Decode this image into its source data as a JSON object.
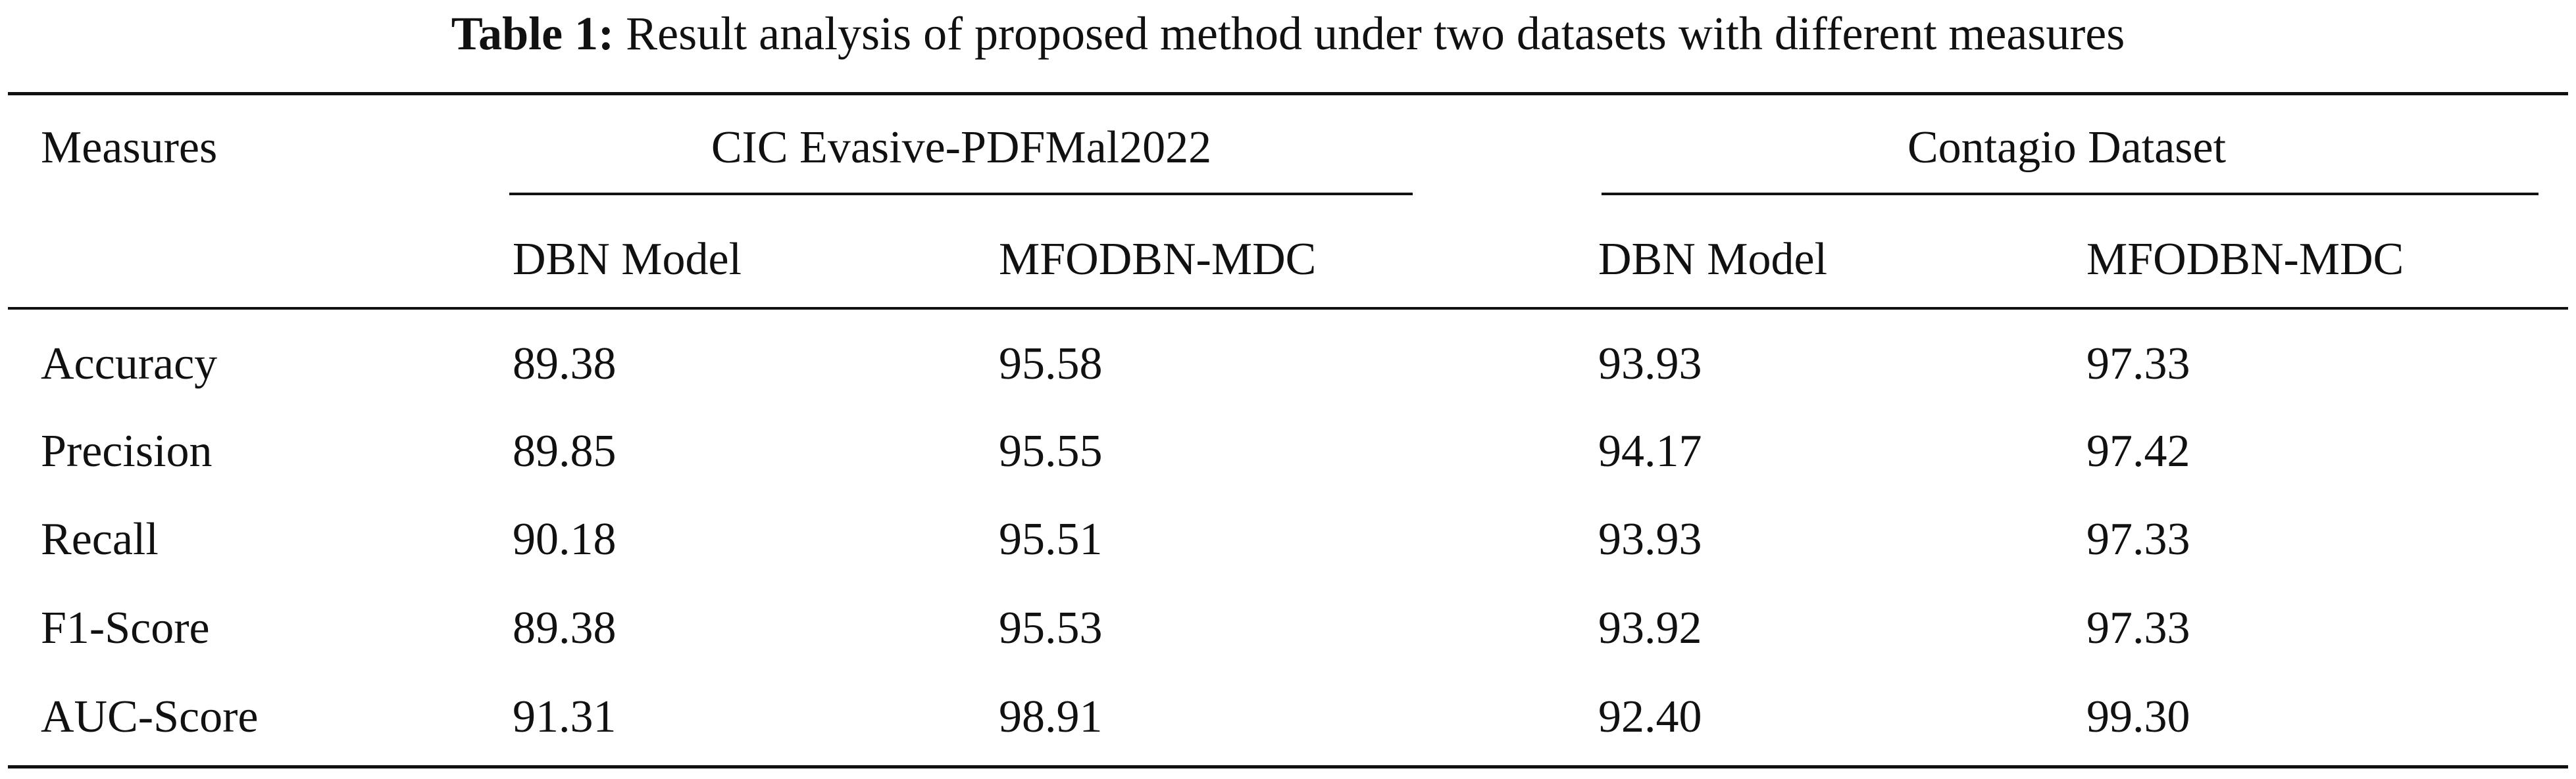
{
  "caption": {
    "label": "Table 1:",
    "text": "Result analysis of proposed method under two datasets with different measures"
  },
  "table": {
    "first_header": "Measures",
    "groups": [
      "CIC Evasive-PDFMal2022",
      "Contagio Dataset"
    ],
    "subheaders": [
      "DBN Model",
      "MFODBN-MDC",
      "DBN Model",
      "MFODBN-MDC"
    ],
    "rows": [
      [
        "Accuracy",
        "89.38",
        "95.58",
        "93.93",
        "97.33"
      ],
      [
        "Precision",
        "89.85",
        "95.55",
        "94.17",
        "97.42"
      ],
      [
        "Recall",
        "90.18",
        "95.51",
        "93.93",
        "97.33"
      ],
      [
        "F1-Score",
        "89.38",
        "95.53",
        "93.92",
        "97.33"
      ],
      [
        "AUC-Score",
        "91.31",
        "98.91",
        "92.40",
        "99.30"
      ]
    ]
  }
}
